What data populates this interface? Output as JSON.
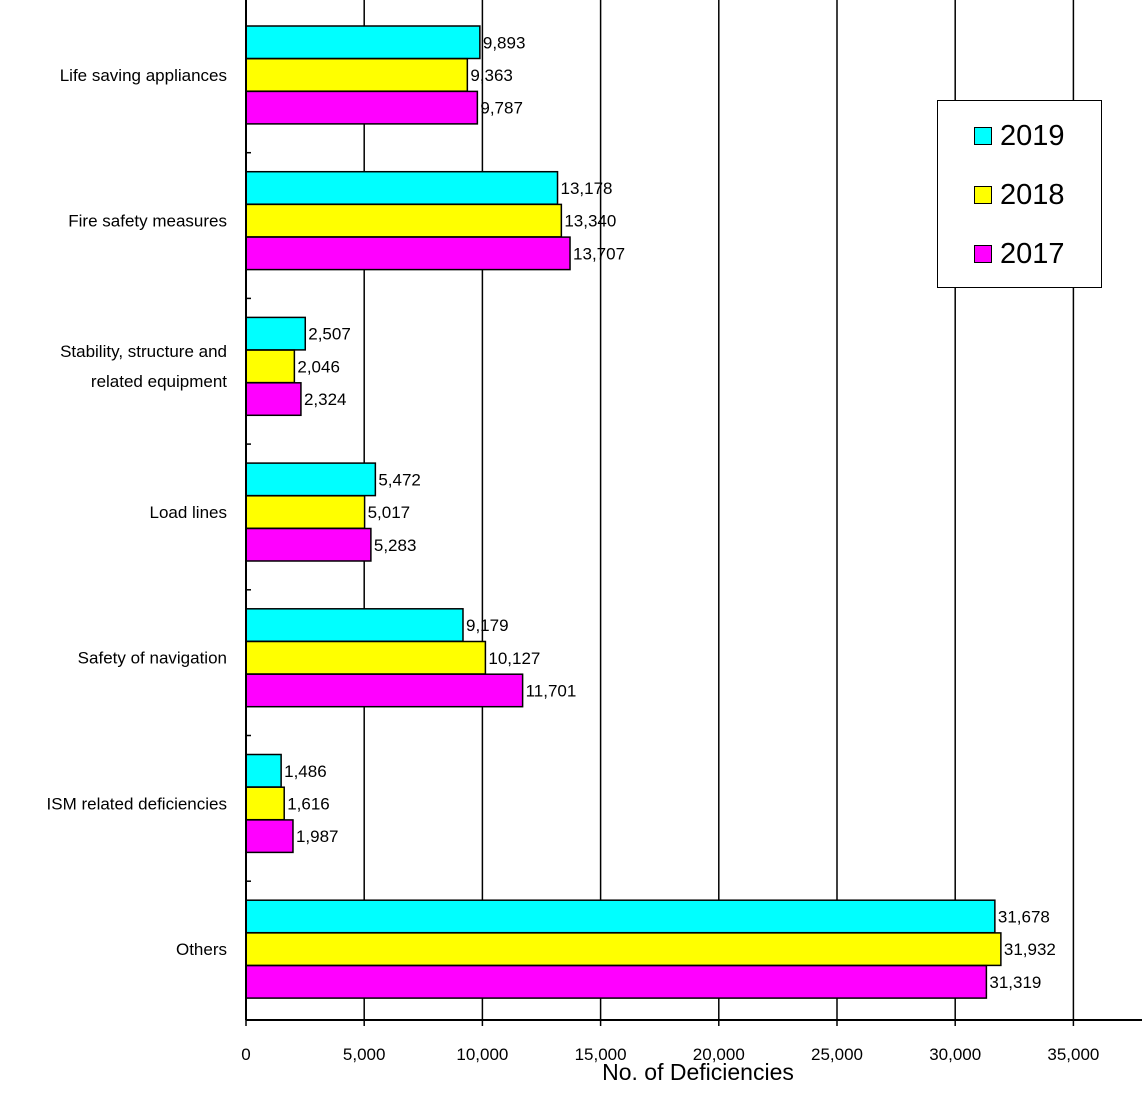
{
  "chart_data": {
    "type": "bar",
    "orientation": "horizontal",
    "categories": [
      "Life saving appliances",
      "Fire safety measures",
      "Stability, structure and related equipment",
      "Load lines",
      "Safety of navigation",
      "ISM related deficiencies",
      "Others"
    ],
    "category_label_lines": [
      [
        "Life saving appliances"
      ],
      [
        "Fire safety measures"
      ],
      [
        "Stability, structure and",
        "related equipment"
      ],
      [
        "Load lines"
      ],
      [
        "Safety of navigation"
      ],
      [
        "ISM related deficiencies"
      ],
      [
        "Others"
      ]
    ],
    "series": [
      {
        "name": "2019",
        "color": "#00FFFF",
        "values": [
          9893,
          13178,
          2507,
          5472,
          9179,
          1486,
          31678
        ],
        "labels": [
          "9,893",
          "13,178",
          "2,507",
          "5,472",
          "9,179",
          "1,486",
          "31,678"
        ]
      },
      {
        "name": "2018",
        "color": "#FFFF00",
        "values": [
          9363,
          13340,
          2046,
          5017,
          10127,
          1616,
          31932
        ],
        "labels": [
          "9,363",
          "13,340",
          "2,046",
          "5,017",
          "10,127",
          "1,616",
          "31,932"
        ]
      },
      {
        "name": "2017",
        "color": "#FF00FF",
        "values": [
          9787,
          13707,
          2324,
          5283,
          11701,
          1987,
          31319
        ],
        "labels": [
          "9,787",
          "13,707",
          "2,324",
          "5,283",
          "11,701",
          "1,987",
          "31,319"
        ]
      }
    ],
    "xlabel": "No. of Deficiencies",
    "xlim": [
      0,
      38000
    ],
    "xticks": [
      0,
      5000,
      10000,
      15000,
      20000,
      25000,
      30000,
      35000
    ],
    "xtick_labels": [
      "0",
      "5,000",
      "10,000",
      "15,000",
      "20,000",
      "25,000",
      "30,000",
      "35,000"
    ],
    "grid": "vertical",
    "legend": {
      "placement": "top-right",
      "order": [
        "2019",
        "2018",
        "2017"
      ]
    }
  }
}
